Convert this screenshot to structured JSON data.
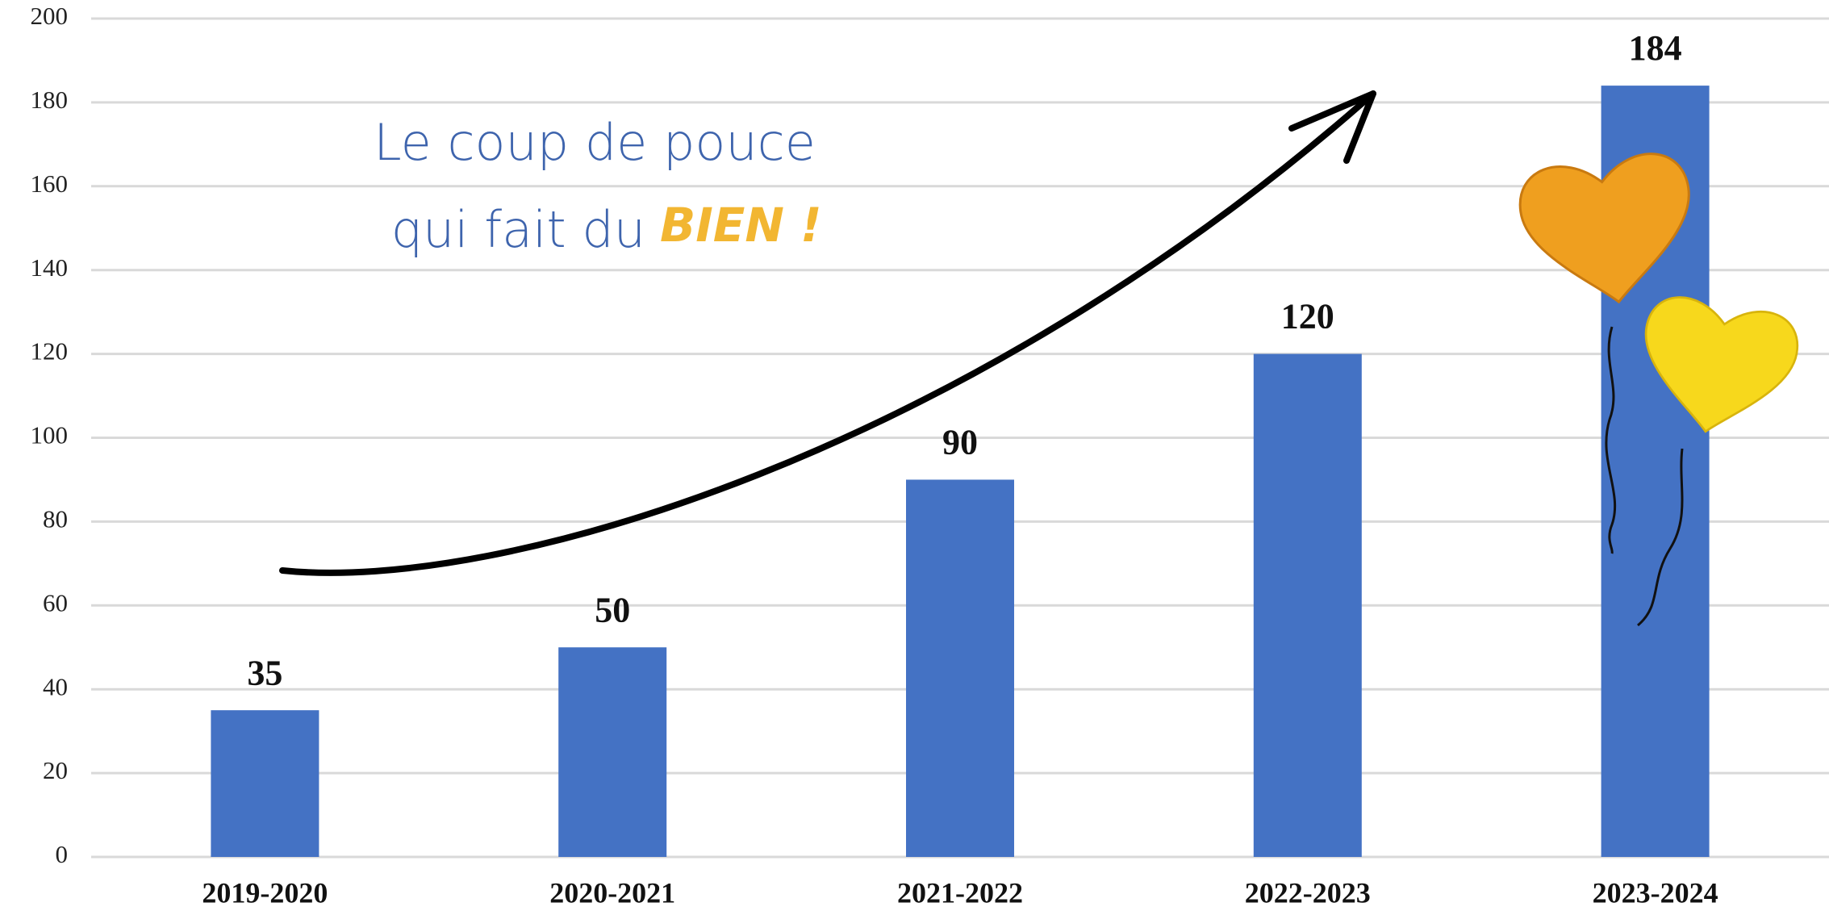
{
  "chart_data": {
    "type": "bar",
    "categories": [
      "2019-2020",
      "2020-2021",
      "2021-2022",
      "2022-2023",
      "2023-2024"
    ],
    "values": [
      35,
      50,
      90,
      120,
      184
    ],
    "color": "#4472c4",
    "ylim": [
      0,
      200
    ],
    "yticks": [
      0,
      20,
      40,
      60,
      80,
      100,
      120,
      140,
      160,
      180,
      200
    ],
    "grid": true,
    "annotations": [
      "Le coup de pouce",
      "qui fait du",
      "BIEN !"
    ]
  }
}
